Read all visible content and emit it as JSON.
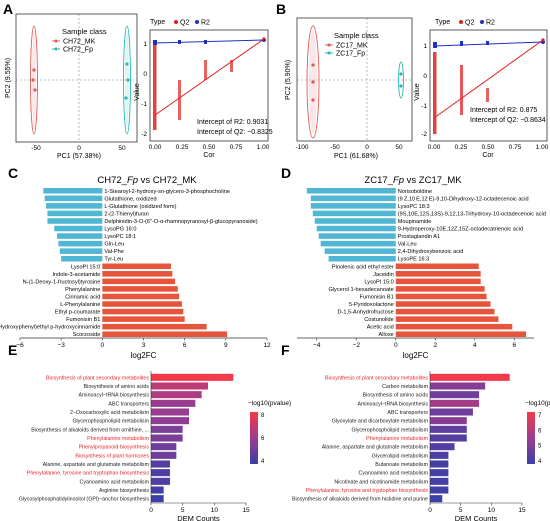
{
  "panels": {
    "A": "A",
    "B": "B",
    "C": "C",
    "D": "D",
    "E": "E",
    "F": "F"
  },
  "colors": {
    "blue_bar": "#4fb6d4",
    "red_bar": "#e4553c",
    "pca_mk": "#e05a55",
    "pca_fp": "#2ab7b0",
    "q2": "#e02020",
    "r2": "#2030c0"
  },
  "chart_data": [
    {
      "panel": "A",
      "type": "scatter",
      "subtype": "pca",
      "title": "",
      "xlabel": "PC1 (57.38%)",
      "ylabel": "PC2 (9.55%)",
      "legend_title": "Sample class",
      "series": [
        {
          "name": "CH72_MK"
        },
        {
          "name": "CH72_Fp"
        }
      ],
      "xticks": [
        "-50",
        "0",
        "50"
      ]
    },
    {
      "panel": "A",
      "type": "scatter",
      "subtype": "permutation",
      "legend_title": "Type",
      "series": [
        {
          "name": "Q2"
        },
        {
          "name": "R2"
        }
      ],
      "xlabel": "Cor",
      "ylabel": "Value",
      "xticks": [
        "0.00",
        "0.25",
        "0.50",
        "0.75",
        "1.00"
      ],
      "yticks": [
        "-2",
        "-1",
        "0",
        "1"
      ],
      "annotations": [
        "Intercept of R2: 0.9031",
        "Intercept of Q2: −0.8325"
      ]
    },
    {
      "panel": "B",
      "type": "scatter",
      "subtype": "pca",
      "xlabel": "PC1 (61.68%)",
      "ylabel": "PC2 (5.90%)",
      "legend_title": "Sample class",
      "series": [
        {
          "name": "ZC17_MK"
        },
        {
          "name": "ZC17_Fp"
        }
      ],
      "xticks": [
        "-100",
        "-50",
        "0",
        "50"
      ]
    },
    {
      "panel": "B",
      "type": "scatter",
      "subtype": "permutation",
      "legend_title": "Type",
      "series": [
        {
          "name": "Q2"
        },
        {
          "name": "R2"
        }
      ],
      "xlabel": "Cor",
      "ylabel": "Value",
      "xticks": [
        "0.00",
        "0.25",
        "0.50",
        "0.75",
        "1.00"
      ],
      "yticks": [
        "-2",
        "-1",
        "0",
        "1"
      ],
      "annotations": [
        "Intercept of R2: 0.875",
        "Intercept of Q2: −0.8634"
      ]
    },
    {
      "panel": "C",
      "type": "bar",
      "orientation": "horizontal",
      "title_parts": [
        "CH72_",
        "Fp",
        " vs CH72_MK"
      ],
      "xlabel": "log2FC",
      "xlim": [
        -6,
        12
      ],
      "xticks": [
        "−6",
        "−3",
        "0",
        "3",
        "6",
        "9",
        "12"
      ],
      "categories": [
        "1-Stearoyl-2-hydroxy-sn-glycero-3-phosphocholine",
        "Glutathione, oxidized",
        "L-Glutathione (oxidized form)",
        "2-(2-Thienyl)furan",
        "Delphinidin-3-O-(6″-O-α-rhamnopyranosyl-β-glucopyranoside)",
        "LysoPG 16:0",
        "LysoPC 18:1",
        "Gln-Leu",
        "Val-Phe",
        "Tyr-Leu",
        "LysoPI 15:0",
        "Indole-3-acetamide",
        "N-(1-Deoxy-1-fructosyl)tyrosine",
        "Phenylalanine",
        "Cinnamic acid",
        "L-Phenylalanine",
        "Ethyl p-coumarate",
        "Fumonisin B1",
        "N-(p-Hydroxyphenyl)ethyl p-hydroxycinnamide",
        "Scorzoside"
      ],
      "values": [
        -4.3,
        -4.2,
        -4.1,
        -4.0,
        -4.0,
        -3.5,
        -3.3,
        -3.2,
        -3.1,
        -3.0,
        5.0,
        5.1,
        5.3,
        5.5,
        5.6,
        5.8,
        5.9,
        6.0,
        7.6,
        9.1
      ]
    },
    {
      "panel": "D",
      "type": "bar",
      "orientation": "horizontal",
      "title_parts": [
        "ZC17_",
        "Fp",
        " vs ZC17_MK"
      ],
      "xlabel": "log2FC",
      "xlim": [
        -5,
        7
      ],
      "xticks": [
        "−4",
        "−2",
        "0",
        "2",
        "4",
        "6"
      ],
      "categories": [
        "Norisoboldine",
        "(9 Z,10 E,12 E)-9,10-Dihydroxy-12-octadecenoic acid",
        "LysoPC 18:3",
        "(9S,10E,12S,13S)-9,12,13-Trihydroxy-10-octadecenoic acid",
        "Moupinamide",
        "9-Hydroperoxy-10E,12Z,15Z-octadecatrienoic acid",
        "Prostaglandin A1",
        "Val-Leu",
        "2,4-Dihydroxybenzoic acid",
        "LysoPE 16:3",
        "Pinolenic acid ethyl ester",
        "Jaceidin",
        "LysoPI 15:0",
        "Glycerol 1-hexadecanoate",
        "Fumonisin B1",
        "5-Pyridoxolactone",
        "D-1,5-Anhydrofructose",
        "Costunolide",
        "Acetic acid",
        "Allose"
      ],
      "values": [
        -4.5,
        -4.3,
        -4.3,
        -4.2,
        -4.1,
        -4.0,
        -3.9,
        -3.8,
        -3.6,
        -3.4,
        4.2,
        4.3,
        4.3,
        4.5,
        4.6,
        4.8,
        5.0,
        5.2,
        5.9,
        6.6
      ]
    },
    {
      "panel": "E",
      "type": "bar",
      "orientation": "horizontal",
      "xlabel": "DEM Counts",
      "xlim": [
        0,
        15
      ],
      "xticks": [
        "0",
        "5",
        "10",
        "15"
      ],
      "legend_title": "−log10(pvalue)",
      "colorbar_ticks": [
        "8",
        "6",
        "4"
      ],
      "categories": [
        "Biosynthesis of plant secondary metabolites",
        "Biosynthesis of amino acids",
        "Aminoacyl−tRNA biosynthesis",
        "ABC transporters",
        "2−Oxocarboxylic acid metabolism",
        "Glycerophospholipid metabolism",
        "Biosynthesis of alkaloids derived from ornithine, ...",
        "Phenylalanine metabolism",
        "Phenylpropanoid biosynthesis",
        "Biosynthesis of plant hormones",
        "Alanine, aspartate and glutamate metabolism",
        "Phenylalanine, tyrosine and tryptophan biosynthesis",
        "Cyanoamino acid metabolism",
        "Arginine biosynthesis",
        "Glycosylphosphatidylinositol (GPI)−anchor biosynthesis"
      ],
      "values": [
        13,
        9,
        8,
        7,
        6,
        6,
        5,
        5,
        4,
        4,
        3,
        3,
        3,
        2,
        2
      ],
      "neglog10p": [
        8.8,
        7.0,
        6.5,
        5.8,
        5.8,
        5.5,
        5.0,
        4.9,
        4.5,
        4.6,
        3.8,
        3.6,
        3.6,
        3.2,
        3.0
      ],
      "highlighted": [
        true,
        false,
        false,
        false,
        false,
        false,
        false,
        true,
        true,
        true,
        false,
        true,
        false,
        false,
        false
      ]
    },
    {
      "panel": "F",
      "type": "bar",
      "orientation": "horizontal",
      "xlabel": "DEM Counts",
      "xlim": [
        0,
        15
      ],
      "xticks": [
        "0",
        "5",
        "10",
        "15"
      ],
      "legend_title": "−log10(pvalue)",
      "colorbar_ticks": [
        "7",
        "6",
        "5",
        "4"
      ],
      "categories": [
        "Biosynthesis of plant secondary metabolites",
        "Carbon metabolism",
        "Biosynthesis of amino acids",
        "Aminoacyl−tRNA biosynthesis",
        "ABC transporters",
        "Glyoxylate and dicarboxylate metabolism",
        "Glycerophospholipid metabolism",
        "Phenylalanine metabolism",
        "Alanine, aspartate and glutamate metabolism",
        "Glycerolipid metabolism",
        "Butanoate metabolism",
        "Cyanoamino acid metabolism",
        "Nicotinate and nicotinamide metabolism",
        "Phenylalanine, tyrosine and tryptophan biosynthesis",
        "Biosynthesis of alkaloids derived from histidine and purine"
      ],
      "values": [
        13,
        9,
        8,
        8,
        7,
        6,
        6,
        6,
        4,
        3,
        3,
        3,
        3,
        3,
        2
      ],
      "neglog10p": [
        7.3,
        5.0,
        4.6,
        5.6,
        4.5,
        5.0,
        4.2,
        4.0,
        4.0,
        3.8,
        3.7,
        3.7,
        3.7,
        3.6,
        3.5
      ],
      "highlighted": [
        true,
        false,
        false,
        false,
        false,
        false,
        false,
        true,
        false,
        false,
        false,
        false,
        false,
        true,
        false
      ]
    }
  ]
}
